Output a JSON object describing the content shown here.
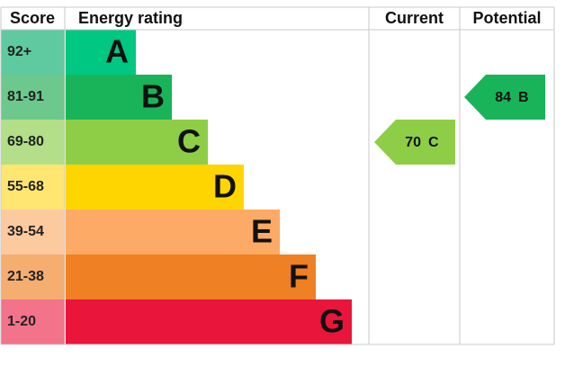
{
  "chart_data": {
    "type": "epc",
    "headers": {
      "score": "Score",
      "rating": "Energy rating",
      "current": "Current",
      "potential": "Potential"
    },
    "bands": [
      {
        "score": "92+",
        "letter": "A",
        "color": "#00c781",
        "score_color": "#5fcaa0"
      },
      {
        "score": "81-91",
        "letter": "B",
        "color": "#19b459",
        "score_color": "#6cc88c"
      },
      {
        "score": "69-80",
        "letter": "C",
        "color": "#8dce46",
        "score_color": "#b2df88"
      },
      {
        "score": "55-68",
        "letter": "D",
        "color": "#ffd500",
        "score_color": "#ffe670"
      },
      {
        "score": "39-54",
        "letter": "E",
        "color": "#fcaa65",
        "score_color": "#fdcaa0"
      },
      {
        "score": "21-38",
        "letter": "F",
        "color": "#ef8023",
        "score_color": "#f5ad70"
      },
      {
        "score": "1-20",
        "letter": "G",
        "color": "#e9153b",
        "score_color": "#f2738a"
      }
    ],
    "current": {
      "value": 70,
      "letter": "C"
    },
    "potential": {
      "value": 84,
      "letter": "B"
    }
  }
}
